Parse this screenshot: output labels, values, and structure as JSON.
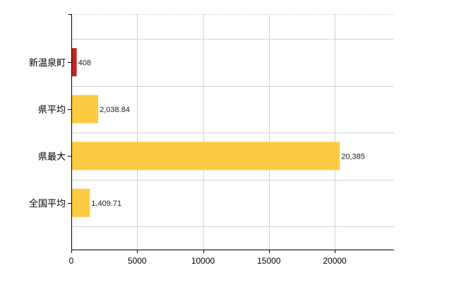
{
  "chart_data": {
    "type": "bar",
    "orientation": "horizontal",
    "title": "",
    "xlabel": "",
    "ylabel": "",
    "categories": [
      "新温泉町",
      "県平均",
      "県最大",
      "全国平均"
    ],
    "values": [
      408,
      2038.84,
      20385,
      1409.71
    ],
    "data_labels": [
      "408",
      "2,038.84",
      "20,385",
      "1,409.71"
    ],
    "bar_colors": [
      "#c0261f",
      "#fccb41",
      "#fccb41",
      "#fccb41"
    ],
    "xlim": [
      0,
      24500
    ],
    "xticks": [
      0,
      5000,
      10000,
      15000,
      20000
    ],
    "xtick_labels": [
      "0",
      "5000",
      "10000",
      "15000",
      "20000"
    ],
    "grid": true,
    "legend": "none"
  }
}
